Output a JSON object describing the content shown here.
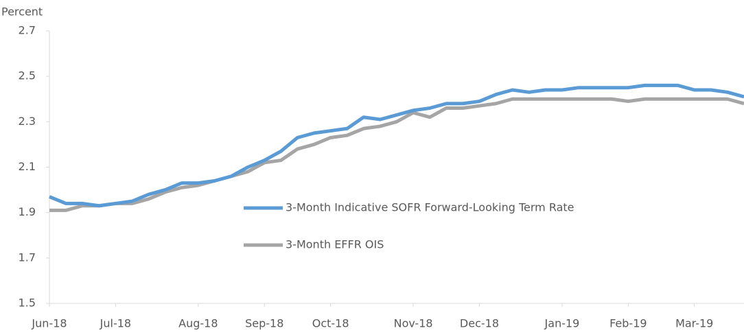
{
  "chart_data": {
    "type": "line",
    "y_label": "Percent",
    "categories": [
      "Jun-18",
      null,
      null,
      null,
      "Jul-18",
      null,
      null,
      null,
      null,
      "Aug-18",
      null,
      null,
      null,
      "Sep-18",
      null,
      null,
      null,
      "Oct-18",
      null,
      null,
      null,
      null,
      "Nov-18",
      null,
      null,
      null,
      "Dec-18",
      null,
      null,
      null,
      null,
      "Jan-19",
      null,
      null,
      null,
      "Feb-19",
      null,
      null,
      null,
      "Mar-19",
      null,
      null,
      null
    ],
    "series": [
      {
        "name": "3-Month Indicative SOFR Forward-Looking Term Rate",
        "color": "#5b9bd5",
        "values": [
          1.97,
          1.94,
          1.94,
          1.93,
          1.94,
          1.95,
          1.98,
          2.0,
          2.03,
          2.03,
          2.04,
          2.06,
          2.1,
          2.13,
          2.17,
          2.23,
          2.25,
          2.26,
          2.27,
          2.32,
          2.31,
          2.33,
          2.35,
          2.36,
          2.38,
          2.38,
          2.39,
          2.42,
          2.44,
          2.43,
          2.44,
          2.44,
          2.45,
          2.45,
          2.45,
          2.45,
          2.46,
          2.46,
          2.46,
          2.44,
          2.44,
          2.43,
          2.41
        ]
      },
      {
        "name": "3-Month EFFR OIS",
        "color": "#a5a5a5",
        "values": [
          1.91,
          1.91,
          1.93,
          1.93,
          1.94,
          1.94,
          1.96,
          1.99,
          2.01,
          2.02,
          2.04,
          2.06,
          2.08,
          2.12,
          2.13,
          2.18,
          2.2,
          2.23,
          2.24,
          2.27,
          2.28,
          2.3,
          2.34,
          2.32,
          2.36,
          2.36,
          2.37,
          2.38,
          2.4,
          2.4,
          2.4,
          2.4,
          2.4,
          2.4,
          2.4,
          2.39,
          2.4,
          2.4,
          2.4,
          2.4,
          2.4,
          2.4,
          2.38
        ]
      }
    ],
    "ylim": [
      1.5,
      2.7
    ],
    "yticks": [
      1.5,
      1.7,
      1.9,
      2.1,
      2.3,
      2.5,
      2.7
    ],
    "grid": false
  }
}
